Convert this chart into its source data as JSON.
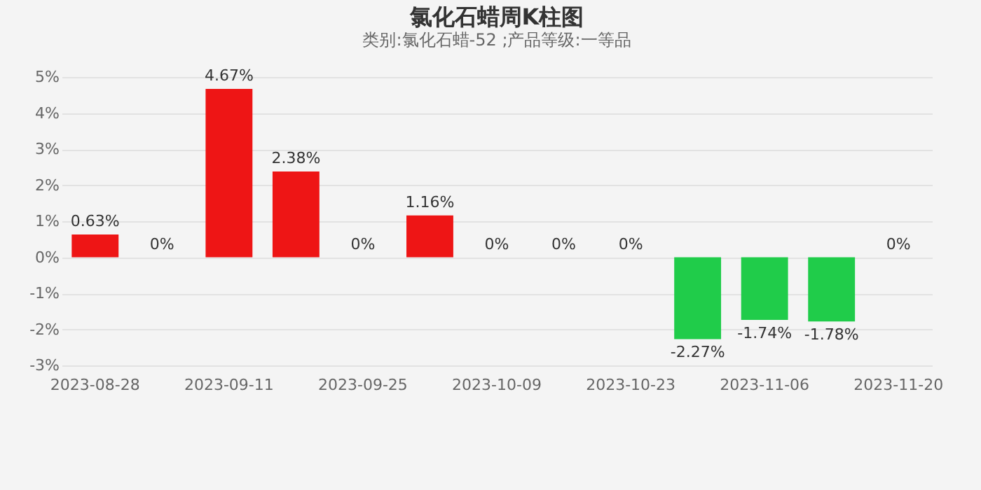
{
  "chart_data": {
    "type": "bar",
    "title": "氯化石蜡周K柱图",
    "subtitle": "类别:氯化石蜡-52 ;产品等级:一等品",
    "categories": [
      "2023-08-28",
      null,
      "2023-09-11",
      null,
      "2023-09-25",
      null,
      "2023-10-09",
      null,
      "2023-10-23",
      null,
      "2023-11-06",
      null,
      "2023-11-20"
    ],
    "values": [
      0.63,
      0,
      4.67,
      2.38,
      0,
      1.16,
      0,
      0,
      0,
      -2.27,
      -1.74,
      -1.78,
      0
    ],
    "colors": [
      "#ee1515",
      "#ee1515",
      "#ee1515",
      "#ee1515",
      "#ee1515",
      "#ee1515",
      "#ee1515",
      "#ee1515",
      "#ee1515",
      "#20cc4a",
      "#20cc4a",
      "#20cc4a",
      "#20cc4a"
    ],
    "value_labels": [
      "0.63%",
      "0%",
      "4.67%",
      "2.38%",
      "0%",
      "1.16%",
      "0%",
      "0%",
      "0%",
      "-2.27%",
      "-1.74%",
      "-1.78%",
      "0%"
    ],
    "ylim": [
      -3,
      5
    ],
    "yticks": [
      {
        "value": -3,
        "label": "-3%"
      },
      {
        "value": -2,
        "label": "-2%"
      },
      {
        "value": -1,
        "label": "-1%"
      },
      {
        "value": 0,
        "label": "0%"
      },
      {
        "value": 1,
        "label": "1%"
      },
      {
        "value": 2,
        "label": "2%"
      },
      {
        "value": 3,
        "label": "3%"
      },
      {
        "value": 4,
        "label": "4%"
      },
      {
        "value": 5,
        "label": "5%"
      }
    ],
    "grid": "y"
  }
}
